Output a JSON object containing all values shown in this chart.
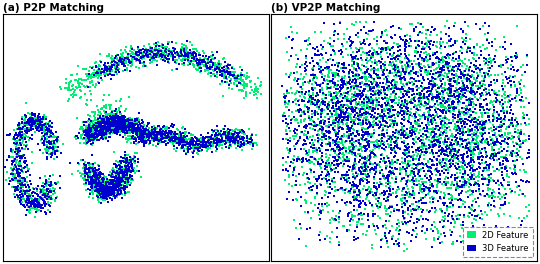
{
  "title_a": "(a) P2P Matching",
  "title_b": "(b) VP2P Matching",
  "color_2d": "#00EE76",
  "color_3d": "#0000CC",
  "legend_2d": "2D Feature",
  "legend_3d": "3D Feature",
  "seed": 42,
  "marker_size": 3
}
